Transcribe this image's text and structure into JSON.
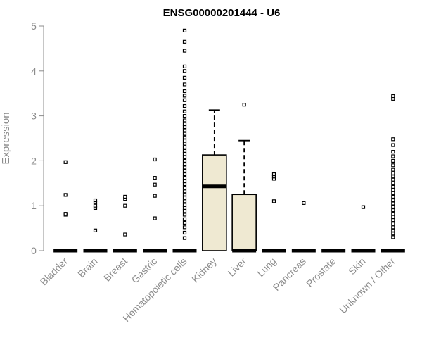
{
  "chart_data": {
    "type": "boxplot",
    "title": "ENSG00000201444 - U6",
    "ylabel": "Expression",
    "xlabel": "",
    "ylim": [
      0,
      5
    ],
    "yticks": [
      0,
      1,
      2,
      3,
      4,
      5
    ],
    "grid": false,
    "colors": {
      "box_fill": "#efe9d2",
      "axis": "#8c8c8c",
      "ink": "#000000"
    },
    "categories": [
      "Bladder",
      "Brain",
      "Breast",
      "Gastric",
      "Hematopoietic cells",
      "Kidney",
      "Liver",
      "Lung",
      "Pancreas",
      "Prostate",
      "Skin",
      "Unknown / Other"
    ],
    "boxes": [
      {
        "category": "Bladder",
        "q1": 0,
        "median": 0,
        "q3": 0,
        "whisker_low": 0,
        "whisker_high": 0,
        "outliers": [
          0.8,
          0.82,
          1.24,
          1.97
        ]
      },
      {
        "category": "Brain",
        "q1": 0,
        "median": 0,
        "q3": 0,
        "whisker_low": 0,
        "whisker_high": 0,
        "outliers": [
          0.45,
          0.95,
          1.0,
          1.07,
          1.12
        ]
      },
      {
        "category": "Breast",
        "q1": 0,
        "median": 0,
        "q3": 0,
        "whisker_low": 0,
        "whisker_high": 0,
        "outliers": [
          0.36,
          1.0,
          1.15,
          1.2
        ]
      },
      {
        "category": "Gastric",
        "q1": 0,
        "median": 0,
        "q3": 0,
        "whisker_low": 0,
        "whisker_high": 0,
        "outliers": [
          0.72,
          1.22,
          1.47,
          1.62,
          2.03
        ]
      },
      {
        "category": "Hematopoietic cells",
        "q1": 0,
        "median": 0,
        "q3": 0,
        "whisker_low": 0,
        "whisker_high": 0,
        "outliers": [
          0.28,
          0.4,
          0.52,
          0.62,
          0.7,
          0.8,
          0.88,
          0.95,
          1.02,
          1.1,
          1.18,
          1.25,
          1.32,
          1.4,
          1.48,
          1.55,
          1.62,
          1.7,
          1.78,
          1.85,
          1.92,
          2.0,
          2.08,
          2.15,
          2.22,
          2.3,
          2.38,
          2.45,
          2.52,
          2.6,
          2.68,
          2.75,
          2.82,
          2.9,
          3.0,
          3.1,
          3.22,
          3.35,
          3.45,
          3.55,
          3.7,
          3.85,
          4.0,
          4.1,
          4.45,
          4.65,
          4.9
        ]
      },
      {
        "category": "Kidney",
        "q1": 0,
        "median": 1.43,
        "q3": 2.13,
        "whisker_low": 0,
        "whisker_high": 3.13,
        "outliers": []
      },
      {
        "category": "Liver",
        "q1": 0,
        "median": 0,
        "q3": 1.25,
        "whisker_low": 0,
        "whisker_high": 2.45,
        "outliers": [
          3.25
        ]
      },
      {
        "category": "Lung",
        "q1": 0,
        "median": 0,
        "q3": 0,
        "whisker_low": 0,
        "whisker_high": 0,
        "outliers": [
          1.1,
          1.6,
          1.65,
          1.7
        ]
      },
      {
        "category": "Pancreas",
        "q1": 0,
        "median": 0,
        "q3": 0,
        "whisker_low": 0,
        "whisker_high": 0,
        "outliers": [
          1.06
        ]
      },
      {
        "category": "Prostate",
        "q1": 0,
        "median": 0,
        "q3": 0,
        "whisker_low": 0,
        "whisker_high": 0,
        "outliers": []
      },
      {
        "category": "Skin",
        "q1": 0,
        "median": 0,
        "q3": 0,
        "whisker_low": 0,
        "whisker_high": 0,
        "outliers": [
          0.97
        ]
      },
      {
        "category": "Unknown / Other",
        "q1": 0,
        "median": 0,
        "q3": 0,
        "whisker_low": 0,
        "whisker_high": 0,
        "outliers": [
          0.3,
          0.38,
          0.45,
          0.52,
          0.6,
          0.68,
          0.75,
          0.82,
          0.9,
          0.98,
          1.05,
          1.12,
          1.2,
          1.28,
          1.35,
          1.42,
          1.5,
          1.58,
          1.65,
          1.72,
          1.8,
          1.9,
          2.0,
          2.1,
          2.2,
          2.35,
          2.48,
          3.38,
          3.44
        ]
      }
    ]
  }
}
